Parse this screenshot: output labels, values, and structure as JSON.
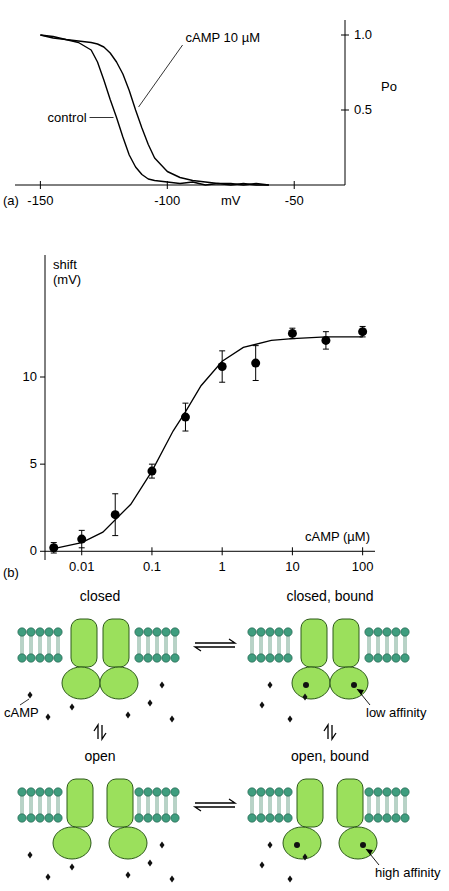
{
  "chart_data": [
    {
      "type": "line",
      "panel_label": "(a)",
      "x_label": "mV",
      "y_label": "Po",
      "x": [
        -150,
        -145,
        -140,
        -135,
        -130,
        -127.5,
        -125,
        -122.5,
        -120,
        -117.5,
        -115,
        -112.5,
        -110,
        -107.5,
        -105,
        -100,
        -95,
        -90,
        -85,
        -80,
        -75,
        -70,
        -65,
        -60
      ],
      "series": [
        {
          "name": "control",
          "color": "#000000",
          "values": [
            1.0,
            0.98,
            0.97,
            0.95,
            0.9,
            0.82,
            0.7,
            0.57,
            0.45,
            0.32,
            0.2,
            0.12,
            0.07,
            0.04,
            0.03,
            0.02,
            0.01,
            0.02,
            0.0,
            0.01,
            0.0,
            0.01,
            0.0,
            0.0
          ]
        },
        {
          "name": "cAMP 10 µM",
          "color": "#000000",
          "values": [
            1.0,
            0.99,
            0.97,
            0.96,
            0.95,
            0.94,
            0.92,
            0.88,
            0.82,
            0.74,
            0.63,
            0.5,
            0.38,
            0.27,
            0.18,
            0.09,
            0.05,
            0.03,
            0.02,
            0.01,
            0.01,
            0.0,
            0.01,
            0.0
          ]
        }
      ],
      "xlim": [
        -160,
        -30
      ],
      "ylim": [
        0,
        1.1
      ],
      "xticks": [
        -150,
        -100,
        -50
      ],
      "yticks": [
        0.5,
        {
          "value": 1,
          "label": "1.0"
        }
      ]
    },
    {
      "type": "scatter",
      "panel_label": "(b)",
      "x_label": "cAMP (µM)",
      "y_label": "shift (mV)",
      "log": "x",
      "series": [
        {
          "type": "scatter",
          "color": "#000000",
          "marker": "circle",
          "x": [
            0.004,
            0.01,
            0.03,
            0.1,
            0.3,
            1,
            3,
            10,
            30,
            100
          ],
          "values": [
            0.2,
            0.7,
            2.1,
            4.6,
            7.7,
            10.6,
            10.8,
            12.5,
            12.1,
            12.6
          ],
          "errors": [
            0.3,
            0.5,
            1.2,
            0.4,
            0.8,
            0.9,
            1.0,
            0.3,
            0.5,
            0.3
          ]
        },
        {
          "type": "line",
          "color": "#000000",
          "line_style": "solid",
          "x": [
            0.004,
            0.01,
            0.02,
            0.05,
            0.1,
            0.2,
            0.3,
            0.5,
            1,
            2,
            5,
            10,
            30,
            100
          ],
          "values": [
            0.15,
            0.5,
            1.1,
            2.7,
            4.6,
            6.9,
            8.0,
            9.5,
            10.9,
            11.7,
            12.1,
            12.2,
            12.3,
            12.3
          ]
        }
      ],
      "xlim": [
        0.003,
        150
      ],
      "ylim": [
        -0.5,
        17
      ],
      "xticks": [
        0.01,
        0.1,
        1,
        10,
        100
      ],
      "yticks": [
        0,
        5,
        10
      ]
    }
  ],
  "diagram": {
    "nodes": [
      {
        "label": "closed",
        "open": false,
        "bound": false
      },
      {
        "label": "closed, bound",
        "open": false,
        "bound": true
      },
      {
        "label": "open",
        "open": true,
        "bound": false
      },
      {
        "label": "open, bound",
        "open": true,
        "bound": true
      }
    ],
    "annotations": [
      {
        "text": "low affinity",
        "node": 1
      },
      {
        "text": "high affinity",
        "node": 3
      },
      {
        "text": "cAMP",
        "node": 0
      }
    ]
  }
}
